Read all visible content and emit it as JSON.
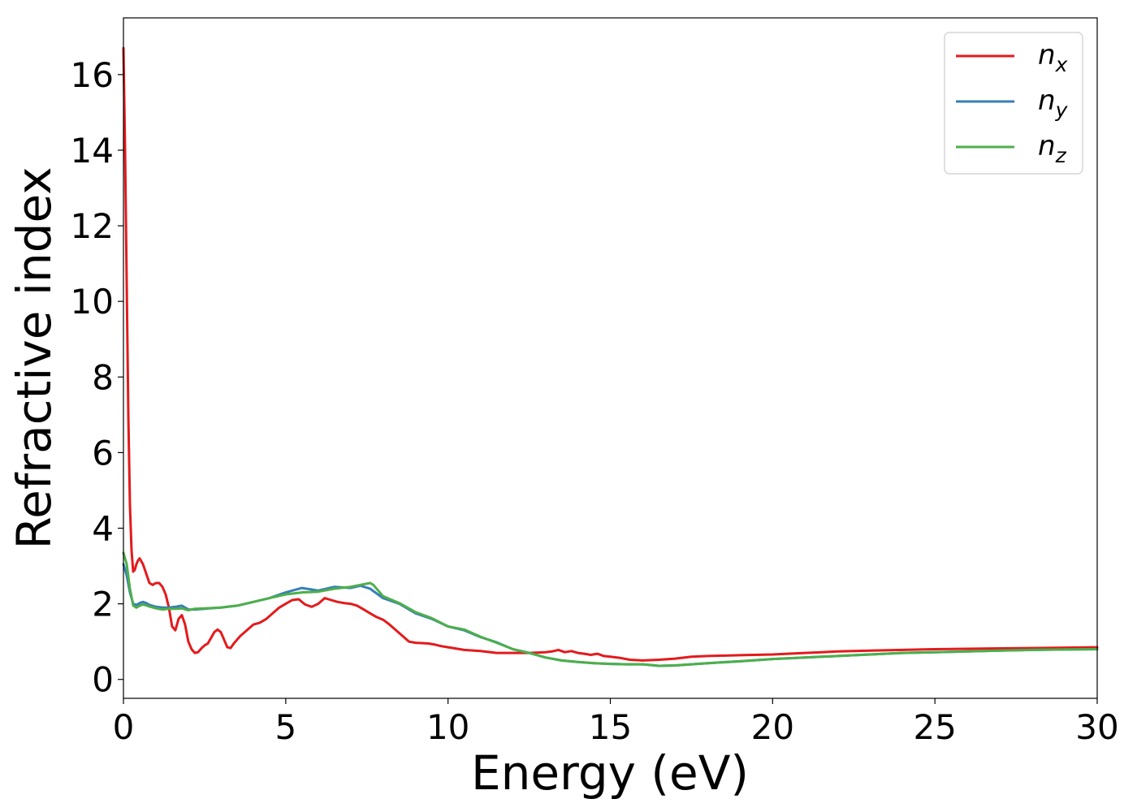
{
  "chart_data": {
    "type": "line",
    "title": "",
    "xlabel": "Energy (eV)",
    "ylabel": "Refractive index",
    "xlim": [
      0,
      30
    ],
    "ylim": [
      -0.5,
      17.5
    ],
    "xticks": [
      0,
      5,
      10,
      15,
      20,
      25,
      30
    ],
    "yticks": [
      0,
      2,
      4,
      6,
      8,
      10,
      12,
      14,
      16
    ],
    "grid": false,
    "legend_position": "top-right",
    "series": [
      {
        "name": "n",
        "subscript": "x",
        "color": "#e41a1c",
        "x": [
          0.0,
          0.05,
          0.1,
          0.15,
          0.2,
          0.25,
          0.3,
          0.35,
          0.4,
          0.45,
          0.5,
          0.6,
          0.7,
          0.8,
          0.9,
          1.0,
          1.1,
          1.2,
          1.3,
          1.4,
          1.5,
          1.6,
          1.7,
          1.8,
          1.9,
          2.0,
          2.1,
          2.2,
          2.3,
          2.4,
          2.5,
          2.6,
          2.7,
          2.8,
          2.9,
          3.0,
          3.1,
          3.2,
          3.3,
          3.4,
          3.5,
          3.6,
          3.8,
          4.0,
          4.2,
          4.4,
          4.6,
          4.8,
          5.0,
          5.2,
          5.4,
          5.5,
          5.6,
          5.8,
          6.0,
          6.2,
          6.4,
          6.6,
          6.8,
          7.0,
          7.2,
          7.4,
          7.6,
          7.8,
          8.0,
          8.2,
          8.4,
          8.6,
          8.8,
          9.0,
          9.2,
          9.4,
          9.6,
          9.8,
          10.0,
          10.5,
          11.0,
          11.5,
          12.0,
          12.5,
          13.0,
          13.2,
          13.4,
          13.6,
          13.8,
          14.0,
          14.2,
          14.4,
          14.6,
          14.8,
          15.0,
          15.3,
          15.6,
          16.0,
          16.5,
          17.0,
          17.5,
          18.0,
          19.0,
          20.0,
          21.0,
          22.0,
          23.0,
          24.0,
          25.0,
          26.0,
          27.0,
          28.0,
          29.0,
          30.0
        ],
        "y": [
          16.7,
          14.0,
          10.5,
          7.0,
          4.6,
          3.4,
          2.85,
          2.9,
          3.05,
          3.15,
          3.2,
          3.05,
          2.8,
          2.55,
          2.5,
          2.55,
          2.55,
          2.45,
          2.25,
          1.9,
          1.4,
          1.3,
          1.6,
          1.7,
          1.45,
          1.0,
          0.8,
          0.7,
          0.72,
          0.82,
          0.9,
          0.95,
          1.1,
          1.25,
          1.32,
          1.25,
          1.05,
          0.85,
          0.83,
          0.95,
          1.05,
          1.15,
          1.3,
          1.45,
          1.5,
          1.6,
          1.75,
          1.9,
          2.0,
          2.1,
          2.12,
          2.05,
          1.98,
          1.92,
          2.0,
          2.15,
          2.1,
          2.05,
          2.02,
          2.0,
          1.95,
          1.85,
          1.75,
          1.65,
          1.58,
          1.45,
          1.3,
          1.15,
          1.0,
          0.97,
          0.96,
          0.95,
          0.92,
          0.88,
          0.85,
          0.78,
          0.75,
          0.7,
          0.7,
          0.7,
          0.72,
          0.74,
          0.78,
          0.72,
          0.75,
          0.7,
          0.68,
          0.65,
          0.68,
          0.62,
          0.6,
          0.57,
          0.52,
          0.5,
          0.52,
          0.55,
          0.6,
          0.62,
          0.64,
          0.66,
          0.7,
          0.74,
          0.76,
          0.78,
          0.8,
          0.81,
          0.82,
          0.83,
          0.84,
          0.85
        ]
      },
      {
        "name": "n",
        "subscript": "y",
        "color": "#377eb8",
        "x": [
          0.0,
          0.1,
          0.2,
          0.3,
          0.4,
          0.5,
          0.6,
          0.7,
          0.8,
          1.0,
          1.2,
          1.4,
          1.6,
          1.8,
          2.0,
          2.2,
          2.5,
          3.0,
          3.5,
          4.0,
          4.5,
          5.0,
          5.5,
          6.0,
          6.5,
          7.0,
          7.3,
          7.6,
          8.0,
          8.5,
          9.0,
          9.5,
          10.0,
          10.5,
          11.0,
          11.5,
          12.0,
          12.5,
          13.0,
          13.5,
          14.0,
          14.5,
          15.0,
          15.5,
          16.0,
          16.5,
          17.0,
          17.5,
          18.0,
          19.0,
          20.0,
          21.0,
          22.0,
          23.0,
          24.0,
          25.0,
          26.0,
          27.0,
          28.0,
          29.0,
          30.0
        ],
        "y": [
          3.05,
          2.75,
          2.3,
          2.0,
          1.97,
          2.02,
          2.05,
          2.02,
          1.97,
          1.92,
          1.9,
          1.9,
          1.92,
          1.95,
          1.85,
          1.85,
          1.87,
          1.9,
          1.95,
          2.05,
          2.15,
          2.3,
          2.42,
          2.35,
          2.45,
          2.42,
          2.48,
          2.4,
          2.15,
          2.0,
          1.75,
          1.6,
          1.4,
          1.3,
          1.12,
          0.98,
          0.8,
          0.7,
          0.58,
          0.5,
          0.46,
          0.43,
          0.41,
          0.4,
          0.4,
          0.36,
          0.37,
          0.4,
          0.43,
          0.48,
          0.54,
          0.58,
          0.62,
          0.66,
          0.7,
          0.72,
          0.74,
          0.76,
          0.78,
          0.79,
          0.8
        ]
      },
      {
        "name": "n",
        "subscript": "z",
        "color": "#4daf4a",
        "x": [
          0.0,
          0.1,
          0.2,
          0.3,
          0.4,
          0.5,
          0.6,
          0.7,
          0.8,
          1.0,
          1.2,
          1.4,
          1.6,
          1.8,
          2.0,
          2.2,
          2.5,
          3.0,
          3.5,
          4.0,
          4.5,
          5.0,
          5.5,
          6.0,
          6.5,
          7.0,
          7.3,
          7.6,
          7.7,
          8.0,
          8.5,
          9.0,
          9.5,
          10.0,
          10.5,
          11.0,
          11.5,
          12.0,
          12.5,
          13.0,
          13.5,
          14.0,
          14.5,
          15.0,
          15.5,
          16.0,
          16.5,
          17.0,
          17.5,
          18.0,
          19.0,
          20.0,
          21.0,
          22.0,
          23.0,
          24.0,
          25.0,
          26.0,
          27.0,
          28.0,
          29.0,
          30.0
        ],
        "y": [
          3.35,
          3.05,
          2.4,
          1.95,
          1.9,
          1.95,
          1.98,
          1.96,
          1.93,
          1.88,
          1.85,
          1.87,
          1.87,
          1.88,
          1.83,
          1.87,
          1.88,
          1.9,
          1.95,
          2.05,
          2.15,
          2.25,
          2.3,
          2.32,
          2.4,
          2.45,
          2.5,
          2.55,
          2.5,
          2.2,
          2.02,
          1.78,
          1.62,
          1.4,
          1.32,
          1.13,
          0.97,
          0.8,
          0.7,
          0.58,
          0.5,
          0.46,
          0.43,
          0.41,
          0.4,
          0.4,
          0.36,
          0.37,
          0.4,
          0.43,
          0.48,
          0.54,
          0.58,
          0.62,
          0.66,
          0.7,
          0.72,
          0.74,
          0.76,
          0.78,
          0.79,
          0.8
        ]
      }
    ]
  }
}
